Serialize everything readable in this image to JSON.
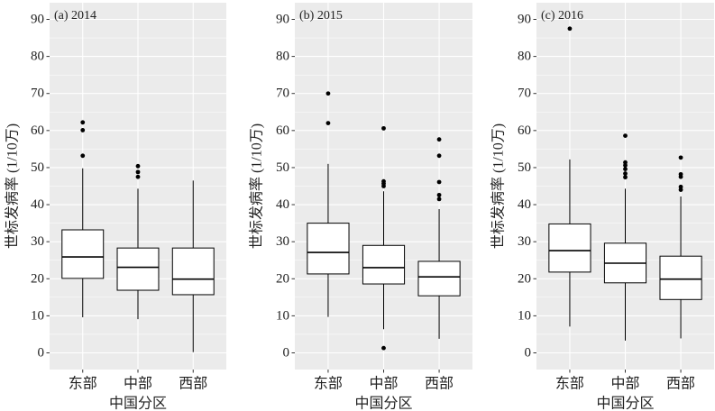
{
  "style": {
    "panel_background": "#EBEBEB",
    "grid_color": "#FFFFFF",
    "box_fill": "#FFFFFF",
    "box_stroke": "#000000",
    "outlier_color": "#000000",
    "tick_color": "#333333"
  },
  "chart_data": [
    {
      "type": "box",
      "panel_label": "(a) 2014",
      "xlabel": "中国分区",
      "ylabel": "世标发病率 (1/10万)",
      "categories": [
        "东部",
        "中部",
        "西部"
      ],
      "yticks": [
        0,
        10,
        20,
        30,
        40,
        50,
        60,
        70,
        80,
        90
      ],
      "ylim": [
        0,
        90
      ],
      "grid": true,
      "boxes": [
        {
          "whisker_low": 9.6,
          "q1": 20.1,
          "median": 25.9,
          "q3": 33.2,
          "whisker_high": 49.8,
          "outliers": [
            53.2,
            60.1,
            62.2
          ]
        },
        {
          "whisker_low": 9.1,
          "q1": 16.9,
          "median": 23.1,
          "q3": 28.3,
          "whisker_high": 44.3,
          "outliers": [
            47.5,
            48.8,
            50.4
          ]
        },
        {
          "whisker_low": 0.2,
          "q1": 15.7,
          "median": 19.9,
          "q3": 28.3,
          "whisker_high": 46.5,
          "outliers": []
        }
      ]
    },
    {
      "type": "box",
      "panel_label": "(b) 2015",
      "xlabel": "中国分区",
      "ylabel": "世标发病率 (1/10万)",
      "categories": [
        "东部",
        "中部",
        "西部"
      ],
      "yticks": [
        0,
        10,
        20,
        30,
        40,
        50,
        60,
        70,
        80,
        90
      ],
      "ylim": [
        0,
        90
      ],
      "grid": true,
      "boxes": [
        {
          "whisker_low": 9.7,
          "q1": 21.3,
          "median": 27.1,
          "q3": 35.0,
          "whisker_high": 51.0,
          "outliers": [
            62.0,
            70.0
          ]
        },
        {
          "whisker_low": 6.4,
          "q1": 18.6,
          "median": 23.0,
          "q3": 29.0,
          "whisker_high": 43.6,
          "outliers": [
            1.3,
            45.0,
            45.7,
            46.3,
            60.6
          ]
        },
        {
          "whisker_low": 3.8,
          "q1": 15.4,
          "median": 20.5,
          "q3": 24.7,
          "whisker_high": 38.8,
          "outliers": [
            41.5,
            42.6,
            46.1,
            53.2,
            57.6
          ]
        }
      ]
    },
    {
      "type": "box",
      "panel_label": "(c) 2016",
      "xlabel": "中国分区",
      "ylabel": "世标发病率 (1/10万)",
      "categories": [
        "东部",
        "中部",
        "西部"
      ],
      "yticks": [
        0,
        10,
        20,
        30,
        40,
        50,
        60,
        70,
        80,
        90
      ],
      "ylim": [
        0,
        90
      ],
      "grid": true,
      "boxes": [
        {
          "whisker_low": 7.1,
          "q1": 21.8,
          "median": 27.6,
          "q3": 34.8,
          "whisker_high": 52.2,
          "outliers": [
            87.5
          ]
        },
        {
          "whisker_low": 3.3,
          "q1": 18.9,
          "median": 24.2,
          "q3": 29.6,
          "whisker_high": 44.3,
          "outliers": [
            47.4,
            48.4,
            49.6,
            50.6,
            51.4,
            58.6
          ]
        },
        {
          "whisker_low": 3.9,
          "q1": 14.4,
          "median": 19.9,
          "q3": 26.1,
          "whisker_high": 42.2,
          "outliers": [
            44.0,
            44.8,
            47.5,
            48.2,
            52.7
          ]
        }
      ]
    }
  ]
}
